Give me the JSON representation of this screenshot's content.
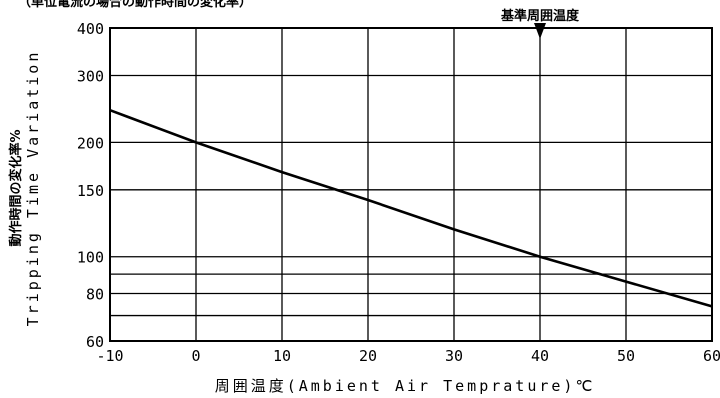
{
  "header_clipped": "（単位電流の場合の動作時間の変化率）",
  "chart_data": {
    "type": "line",
    "xlabel": "周囲温度(Ambient Air Temprature)℃",
    "ylabel_jp": "動作時間の変化率%",
    "ylabel_en": "Tripping Time Variation",
    "xlim": [
      -10,
      60
    ],
    "ylim": [
      60,
      400
    ],
    "yscale": "log",
    "x_ticks": [
      "-10",
      "0",
      "10",
      "20",
      "30",
      "40",
      "50",
      "60"
    ],
    "y_ticks": [
      "60",
      "80",
      "100",
      "150",
      "200",
      "300",
      "400"
    ],
    "y_grid_extra": [
      70,
      90
    ],
    "grid": true,
    "reference": {
      "x": 40,
      "label": "基準周囲温度"
    },
    "series": [
      {
        "x": [
          -10,
          0,
          10,
          20,
          30,
          40,
          50,
          60
        ],
        "y": [
          243,
          200,
          167,
          141,
          118,
          100,
          86,
          74
        ]
      }
    ]
  }
}
